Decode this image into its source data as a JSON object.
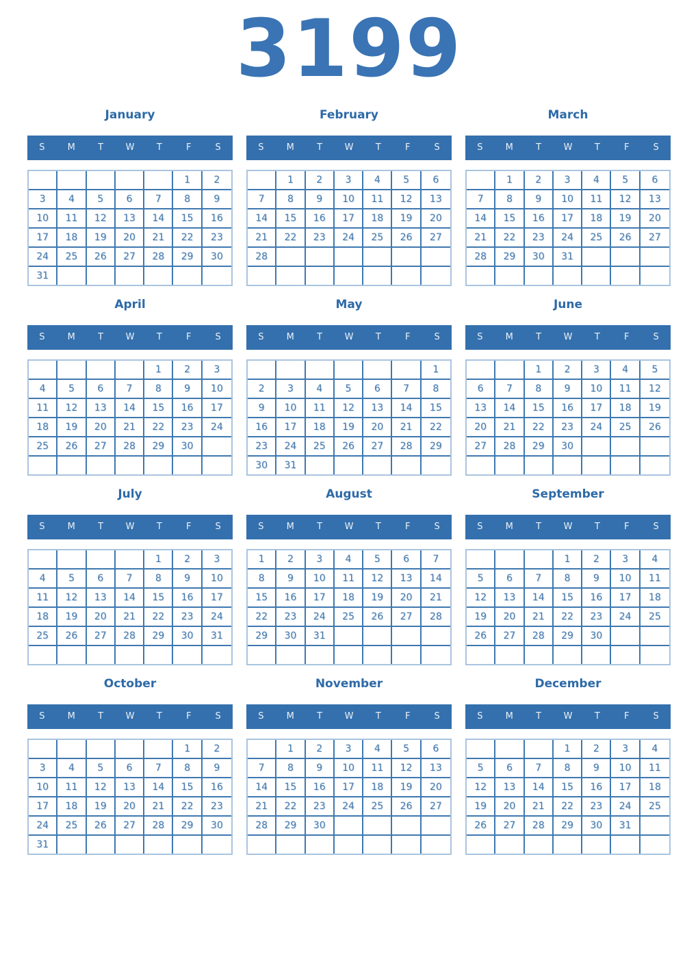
{
  "year": "3199",
  "weekdays": [
    "S",
    "M",
    "T",
    "W",
    "T",
    "F",
    "S"
  ],
  "colors": {
    "year_title": "#3a74b4",
    "month_title": "#2d6aa8",
    "weekday_bar": "#3470ad",
    "weekday_text": "#ecf1f7",
    "day_number": "#4678aa",
    "grid_inner_border": "#3e78b0",
    "grid_outer_border": "#a9c4df",
    "background": "#ffffff"
  },
  "months": [
    {
      "name": "January",
      "weeks": [
        [
          "",
          "",
          "",
          "",
          "",
          "1",
          "2"
        ],
        [
          "3",
          "4",
          "5",
          "6",
          "7",
          "8",
          "9"
        ],
        [
          "10",
          "11",
          "12",
          "13",
          "14",
          "15",
          "16"
        ],
        [
          "17",
          "18",
          "19",
          "20",
          "21",
          "22",
          "23"
        ],
        [
          "24",
          "25",
          "26",
          "27",
          "28",
          "29",
          "30"
        ],
        [
          "31",
          "",
          "",
          "",
          "",
          "",
          ""
        ]
      ]
    },
    {
      "name": "February",
      "weeks": [
        [
          "",
          "1",
          "2",
          "3",
          "4",
          "5",
          "6"
        ],
        [
          "7",
          "8",
          "9",
          "10",
          "11",
          "12",
          "13"
        ],
        [
          "14",
          "15",
          "16",
          "17",
          "18",
          "19",
          "20"
        ],
        [
          "21",
          "22",
          "23",
          "24",
          "25",
          "26",
          "27"
        ],
        [
          "28",
          "",
          "",
          "",
          "",
          "",
          ""
        ],
        [
          "",
          "",
          "",
          "",
          "",
          "",
          ""
        ]
      ]
    },
    {
      "name": "March",
      "weeks": [
        [
          "",
          "1",
          "2",
          "3",
          "4",
          "5",
          "6"
        ],
        [
          "7",
          "8",
          "9",
          "10",
          "11",
          "12",
          "13"
        ],
        [
          "14",
          "15",
          "16",
          "17",
          "18",
          "19",
          "20"
        ],
        [
          "21",
          "22",
          "23",
          "24",
          "25",
          "26",
          "27"
        ],
        [
          "28",
          "29",
          "30",
          "31",
          "",
          "",
          ""
        ],
        [
          "",
          "",
          "",
          "",
          "",
          "",
          ""
        ]
      ]
    },
    {
      "name": "April",
      "weeks": [
        [
          "",
          "",
          "",
          "",
          "1",
          "2",
          "3"
        ],
        [
          "4",
          "5",
          "6",
          "7",
          "8",
          "9",
          "10"
        ],
        [
          "11",
          "12",
          "13",
          "14",
          "15",
          "16",
          "17"
        ],
        [
          "18",
          "19",
          "20",
          "21",
          "22",
          "23",
          "24"
        ],
        [
          "25",
          "26",
          "27",
          "28",
          "29",
          "30",
          ""
        ],
        [
          "",
          "",
          "",
          "",
          "",
          "",
          ""
        ]
      ]
    },
    {
      "name": "May",
      "weeks": [
        [
          "",
          "",
          "",
          "",
          "",
          "",
          "1"
        ],
        [
          "2",
          "3",
          "4",
          "5",
          "6",
          "7",
          "8"
        ],
        [
          "9",
          "10",
          "11",
          "12",
          "13",
          "14",
          "15"
        ],
        [
          "16",
          "17",
          "18",
          "19",
          "20",
          "21",
          "22"
        ],
        [
          "23",
          "24",
          "25",
          "26",
          "27",
          "28",
          "29"
        ],
        [
          "30",
          "31",
          "",
          "",
          "",
          "",
          ""
        ]
      ]
    },
    {
      "name": "June",
      "weeks": [
        [
          "",
          "",
          "1",
          "2",
          "3",
          "4",
          "5"
        ],
        [
          "6",
          "7",
          "8",
          "9",
          "10",
          "11",
          "12"
        ],
        [
          "13",
          "14",
          "15",
          "16",
          "17",
          "18",
          "19"
        ],
        [
          "20",
          "21",
          "22",
          "23",
          "24",
          "25",
          "26"
        ],
        [
          "27",
          "28",
          "29",
          "30",
          "",
          "",
          ""
        ],
        [
          "",
          "",
          "",
          "",
          "",
          "",
          ""
        ]
      ]
    },
    {
      "name": "July",
      "weeks": [
        [
          "",
          "",
          "",
          "",
          "1",
          "2",
          "3"
        ],
        [
          "4",
          "5",
          "6",
          "7",
          "8",
          "9",
          "10"
        ],
        [
          "11",
          "12",
          "13",
          "14",
          "15",
          "16",
          "17"
        ],
        [
          "18",
          "19",
          "20",
          "21",
          "22",
          "23",
          "24"
        ],
        [
          "25",
          "26",
          "27",
          "28",
          "29",
          "30",
          "31"
        ],
        [
          "",
          "",
          "",
          "",
          "",
          "",
          ""
        ]
      ]
    },
    {
      "name": "August",
      "weeks": [
        [
          "1",
          "2",
          "3",
          "4",
          "5",
          "6",
          "7"
        ],
        [
          "8",
          "9",
          "10",
          "11",
          "12",
          "13",
          "14"
        ],
        [
          "15",
          "16",
          "17",
          "18",
          "19",
          "20",
          "21"
        ],
        [
          "22",
          "23",
          "24",
          "25",
          "26",
          "27",
          "28"
        ],
        [
          "29",
          "30",
          "31",
          "",
          "",
          "",
          ""
        ],
        [
          "",
          "",
          "",
          "",
          "",
          "",
          ""
        ]
      ]
    },
    {
      "name": "September",
      "weeks": [
        [
          "",
          "",
          "",
          "1",
          "2",
          "3",
          "4"
        ],
        [
          "5",
          "6",
          "7",
          "8",
          "9",
          "10",
          "11"
        ],
        [
          "12",
          "13",
          "14",
          "15",
          "16",
          "17",
          "18"
        ],
        [
          "19",
          "20",
          "21",
          "22",
          "23",
          "24",
          "25"
        ],
        [
          "26",
          "27",
          "28",
          "29",
          "30",
          "",
          ""
        ],
        [
          "",
          "",
          "",
          "",
          "",
          "",
          ""
        ]
      ]
    },
    {
      "name": "October",
      "weeks": [
        [
          "",
          "",
          "",
          "",
          "",
          "1",
          "2"
        ],
        [
          "3",
          "4",
          "5",
          "6",
          "7",
          "8",
          "9"
        ],
        [
          "10",
          "11",
          "12",
          "13",
          "14",
          "15",
          "16"
        ],
        [
          "17",
          "18",
          "19",
          "20",
          "21",
          "22",
          "23"
        ],
        [
          "24",
          "25",
          "26",
          "27",
          "28",
          "29",
          "30"
        ],
        [
          "31",
          "",
          "",
          "",
          "",
          "",
          ""
        ]
      ]
    },
    {
      "name": "November",
      "weeks": [
        [
          "",
          "1",
          "2",
          "3",
          "4",
          "5",
          "6"
        ],
        [
          "7",
          "8",
          "9",
          "10",
          "11",
          "12",
          "13"
        ],
        [
          "14",
          "15",
          "16",
          "17",
          "18",
          "19",
          "20"
        ],
        [
          "21",
          "22",
          "23",
          "24",
          "25",
          "26",
          "27"
        ],
        [
          "28",
          "29",
          "30",
          "",
          "",
          "",
          ""
        ],
        [
          "",
          "",
          "",
          "",
          "",
          "",
          ""
        ]
      ]
    },
    {
      "name": "December",
      "weeks": [
        [
          "",
          "",
          "",
          "1",
          "2",
          "3",
          "4"
        ],
        [
          "5",
          "6",
          "7",
          "8",
          "9",
          "10",
          "11"
        ],
        [
          "12",
          "13",
          "14",
          "15",
          "16",
          "17",
          "18"
        ],
        [
          "19",
          "20",
          "21",
          "22",
          "23",
          "24",
          "25"
        ],
        [
          "26",
          "27",
          "28",
          "29",
          "30",
          "31",
          ""
        ],
        [
          "",
          "",
          "",
          "",
          "",
          "",
          ""
        ]
      ]
    }
  ]
}
